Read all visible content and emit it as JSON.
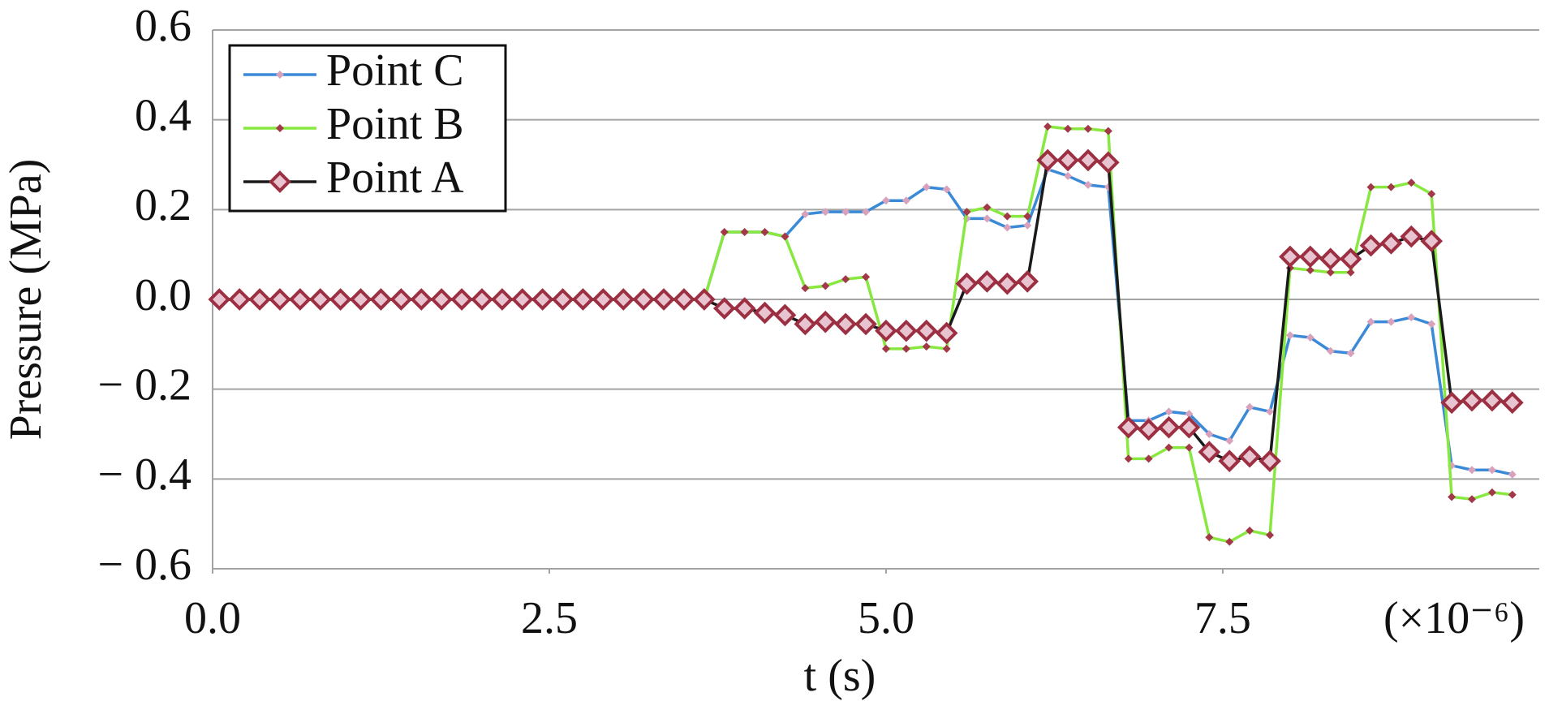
{
  "chart_data": {
    "type": "line",
    "x_label": "t (s)",
    "y_label": "Pressure (MPa)",
    "x_annotation": "(×10⁻⁶)",
    "x": [
      0.05,
      0.2,
      0.35,
      0.5,
      0.65,
      0.8,
      0.95,
      1.1,
      1.25,
      1.4,
      1.55,
      1.7,
      1.85,
      2,
      2.15,
      2.3,
      2.45,
      2.6,
      2.75,
      2.9,
      3.05,
      3.2,
      3.35,
      3.5,
      3.65,
      3.8,
      3.95,
      4.1,
      4.25,
      4.4,
      4.55,
      4.7,
      4.85,
      5,
      5.15,
      5.3,
      5.45,
      5.6,
      5.75,
      5.9,
      6.05,
      6.2,
      6.35,
      6.5,
      6.65,
      6.8,
      6.95,
      7.1,
      7.25,
      7.4,
      7.55,
      7.7,
      7.85,
      8,
      8.15,
      8.3,
      8.45,
      8.6,
      8.75,
      8.9,
      9.05,
      9.2,
      9.35,
      9.5,
      9.65
    ],
    "series": [
      {
        "name": "Point C",
        "color": "#3a8ad8",
        "marker": "small",
        "marker_color": "#d8a2bc",
        "values": [
          0,
          0,
          0,
          0,
          0,
          0,
          0,
          0,
          0,
          0,
          0,
          0,
          0,
          0,
          0,
          0,
          0,
          0,
          0,
          0,
          0,
          0,
          0,
          0,
          0,
          0.15,
          0.15,
          0.15,
          0.14,
          0.19,
          0.195,
          0.195,
          0.195,
          0.22,
          0.22,
          0.25,
          0.245,
          0.18,
          0.18,
          0.16,
          0.165,
          0.29,
          0.275,
          0.255,
          0.25,
          -0.27,
          -0.27,
          -0.25,
          -0.255,
          -0.3,
          -0.315,
          -0.24,
          -0.25,
          -0.08,
          -0.085,
          -0.115,
          -0.12,
          -0.05,
          -0.05,
          -0.04,
          -0.055,
          -0.37,
          -0.38,
          -0.38,
          -0.39
        ]
      },
      {
        "name": "Point B",
        "color": "#88e840",
        "marker": "small",
        "marker_color": "#a23848",
        "values": [
          0,
          0,
          0,
          0,
          0,
          0,
          0,
          0,
          0,
          0,
          0,
          0,
          0,
          0,
          0,
          0,
          0,
          0,
          0,
          0,
          0,
          0,
          0,
          0,
          0,
          0.15,
          0.15,
          0.15,
          0.14,
          0.025,
          0.03,
          0.045,
          0.05,
          -0.11,
          -0.11,
          -0.105,
          -0.11,
          0.195,
          0.205,
          0.185,
          0.185,
          0.385,
          0.38,
          0.38,
          0.375,
          -0.355,
          -0.355,
          -0.33,
          -0.33,
          -0.53,
          -0.54,
          -0.515,
          -0.525,
          0.07,
          0.065,
          0.06,
          0.06,
          0.25,
          0.25,
          0.26,
          0.235,
          -0.44,
          -0.445,
          -0.43,
          -0.435
        ]
      },
      {
        "name": "Point A",
        "color": "#1a1a1a",
        "marker": "large",
        "marker_color": "#9c3042",
        "values": [
          0,
          0,
          0,
          0,
          0,
          0,
          0,
          0,
          0,
          0,
          0,
          0,
          0,
          0,
          0,
          0,
          0,
          0,
          0,
          0,
          0,
          0,
          0,
          0,
          0,
          -0.02,
          -0.02,
          -0.03,
          -0.035,
          -0.055,
          -0.05,
          -0.055,
          -0.055,
          -0.07,
          -0.07,
          -0.07,
          -0.075,
          0.035,
          0.04,
          0.035,
          0.04,
          0.31,
          0.31,
          0.31,
          0.305,
          -0.285,
          -0.29,
          -0.285,
          -0.285,
          -0.34,
          -0.36,
          -0.35,
          -0.36,
          0.095,
          0.095,
          0.09,
          0.09,
          0.12,
          0.125,
          0.14,
          0.13,
          -0.23,
          -0.225,
          -0.225,
          -0.23
        ]
      }
    ],
    "xlim": [
      0,
      9.85
    ],
    "xticks": [
      {
        "value": 0,
        "label": "0.0"
      },
      2.5,
      {
        "value": 5,
        "label": "5.0"
      },
      7.5
    ],
    "ylim": [
      -0.6,
      0.6
    ],
    "yticks": [
      {
        "value": -0.6,
        "label": "− 0.6"
      },
      {
        "value": -0.4,
        "label": "− 0.4"
      },
      {
        "value": -0.2,
        "label": "− 0.2"
      },
      {
        "value": 0,
        "label": "0.0"
      },
      0.2,
      0.4,
      0.6
    ],
    "grid": true,
    "legend": "upper left"
  }
}
